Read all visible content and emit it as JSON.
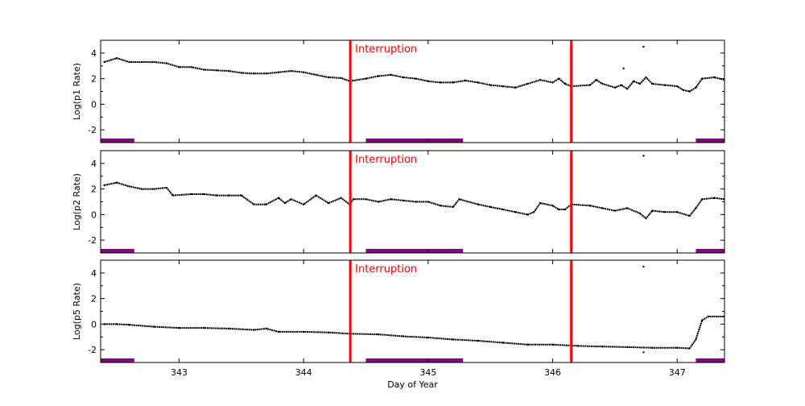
{
  "chart_data": {
    "type": "scatter",
    "xlabel": "Day of Year",
    "xlim": [
      342.37,
      347.38
    ],
    "xticks": [
      343,
      344,
      345,
      346,
      347
    ],
    "annotation": "Interruption",
    "interruption_days": [
      344.375,
      346.15
    ],
    "shaded_intervals": [
      [
        342.37,
        342.64
      ],
      [
        344.5,
        345.28
      ],
      [
        347.15,
        347.38
      ]
    ],
    "colors": {
      "data": "#000000",
      "interruption": "#ff0000",
      "interval_bar": "#800080"
    },
    "panels": [
      {
        "ylabel": "Log(p1 Rate)",
        "ylim": [
          -3,
          5
        ],
        "yticks": [
          -2,
          0,
          2,
          4
        ],
        "x": [
          342.4,
          342.5,
          342.6,
          342.7,
          342.8,
          342.9,
          343.0,
          343.1,
          343.2,
          343.3,
          343.4,
          343.5,
          343.6,
          343.7,
          343.8,
          343.9,
          344.0,
          344.1,
          344.2,
          344.3,
          344.37,
          344.5,
          344.6,
          344.7,
          344.8,
          344.9,
          345.0,
          345.1,
          345.2,
          345.3,
          345.4,
          345.5,
          345.6,
          345.7,
          345.8,
          345.9,
          346.0,
          346.05,
          346.1,
          346.15,
          346.3,
          346.35,
          346.4,
          346.5,
          346.55,
          346.6,
          346.65,
          346.7,
          346.75,
          346.8,
          346.9,
          347.0,
          347.05,
          347.1,
          347.15,
          347.2,
          347.3,
          347.38
        ],
        "y": [
          3.3,
          3.6,
          3.3,
          3.3,
          3.3,
          3.2,
          2.9,
          2.9,
          2.7,
          2.65,
          2.6,
          2.45,
          2.4,
          2.4,
          2.5,
          2.6,
          2.5,
          2.3,
          2.1,
          2.05,
          1.8,
          2.0,
          2.2,
          2.3,
          2.1,
          2.0,
          1.8,
          1.7,
          1.7,
          1.85,
          1.7,
          1.5,
          1.4,
          1.3,
          1.6,
          1.9,
          1.7,
          2.0,
          1.6,
          1.4,
          1.5,
          1.9,
          1.6,
          1.3,
          1.5,
          1.2,
          1.8,
          1.6,
          2.1,
          1.6,
          1.5,
          1.4,
          1.1,
          1.0,
          1.3,
          2.0,
          2.1,
          1.9
        ],
        "outliers": [
          [
            346.73,
            4.5
          ],
          [
            346.57,
            2.8
          ]
        ]
      },
      {
        "ylabel": "Log(p2 Rate)",
        "ylim": [
          -3,
          5
        ],
        "yticks": [
          -2,
          0,
          2,
          4
        ],
        "x": [
          342.4,
          342.5,
          342.6,
          342.7,
          342.8,
          342.9,
          342.95,
          343.1,
          343.2,
          343.3,
          343.4,
          343.5,
          343.6,
          343.7,
          343.8,
          343.85,
          343.9,
          344.0,
          344.1,
          344.2,
          344.3,
          344.37,
          344.4,
          344.5,
          344.6,
          344.7,
          344.8,
          344.9,
          345.0,
          345.1,
          345.2,
          345.25,
          345.4,
          345.5,
          345.6,
          345.7,
          345.8,
          345.85,
          345.9,
          346.0,
          346.05,
          346.1,
          346.15,
          346.3,
          346.4,
          346.5,
          346.6,
          346.7,
          346.75,
          346.8,
          346.9,
          347.0,
          347.1,
          347.15,
          347.2,
          347.3,
          347.38
        ],
        "y": [
          2.3,
          2.5,
          2.2,
          2.0,
          2.0,
          2.1,
          1.5,
          1.6,
          1.6,
          1.5,
          1.5,
          1.5,
          0.8,
          0.8,
          1.3,
          0.9,
          1.2,
          0.8,
          1.5,
          0.9,
          1.3,
          0.8,
          1.2,
          1.2,
          1.0,
          1.2,
          1.1,
          1.0,
          1.0,
          0.7,
          0.6,
          1.2,
          0.8,
          0.6,
          0.4,
          0.2,
          0.0,
          0.2,
          0.9,
          0.7,
          0.4,
          0.4,
          0.8,
          0.7,
          0.5,
          0.3,
          0.5,
          0.1,
          -0.3,
          0.3,
          0.2,
          0.2,
          -0.1,
          0.5,
          1.2,
          1.3,
          1.2
        ],
        "outliers": [
          [
            346.73,
            4.6
          ]
        ]
      },
      {
        "ylabel": "Log(p5 Rate)",
        "ylim": [
          -3,
          5
        ],
        "yticks": [
          -2,
          0,
          2,
          4
        ],
        "x": [
          342.4,
          342.5,
          342.6,
          342.8,
          343.0,
          343.2,
          343.4,
          343.6,
          343.7,
          343.8,
          344.0,
          344.2,
          344.37,
          344.6,
          344.8,
          345.0,
          345.2,
          345.4,
          345.6,
          345.8,
          346.0,
          346.2,
          346.4,
          346.6,
          346.8,
          347.0,
          347.1,
          347.15,
          347.2,
          347.25,
          347.38
        ],
        "y": [
          0.0,
          0.0,
          -0.05,
          -0.2,
          -0.3,
          -0.3,
          -0.35,
          -0.45,
          -0.35,
          -0.6,
          -0.6,
          -0.65,
          -0.75,
          -0.8,
          -0.95,
          -1.05,
          -1.2,
          -1.3,
          -1.45,
          -1.6,
          -1.6,
          -1.7,
          -1.75,
          -1.8,
          -1.85,
          -1.85,
          -1.9,
          -1.2,
          0.3,
          0.6,
          0.6
        ],
        "outliers": [
          [
            346.73,
            4.5
          ],
          [
            346.73,
            -2.2
          ]
        ]
      }
    ]
  }
}
